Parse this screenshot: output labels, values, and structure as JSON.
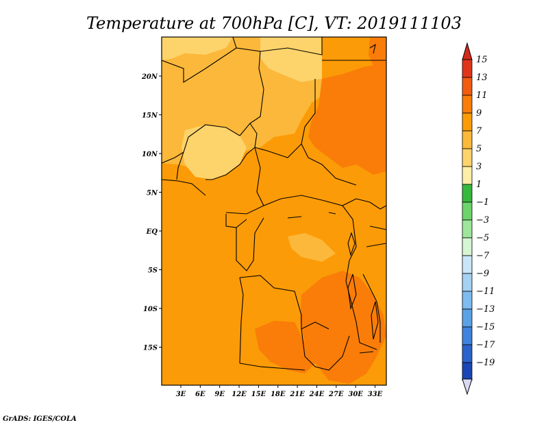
{
  "title": "Temperature at 700hPa [C], VT: 2019111103",
  "credit": "GrADS: IGES/COLA",
  "map": {
    "lat_labels": [
      {
        "lat": 20,
        "label": "20N"
      },
      {
        "lat": 15,
        "label": "15N"
      },
      {
        "lat": 10,
        "label": "10N"
      },
      {
        "lat": 5,
        "label": "5N"
      },
      {
        "lat": 0,
        "label": "EQ"
      },
      {
        "lat": -5,
        "label": "5S"
      },
      {
        "lat": -10,
        "label": "10S"
      },
      {
        "lat": -15,
        "label": "15S"
      }
    ],
    "lon_labels": [
      {
        "lon": 3,
        "label": "3E"
      },
      {
        "lon": 6,
        "label": "6E"
      },
      {
        "lon": 9,
        "label": "9E"
      },
      {
        "lon": 12,
        "label": "12E"
      },
      {
        "lon": 15,
        "label": "15E"
      },
      {
        "lon": 18,
        "label": "18E"
      },
      {
        "lon": 21,
        "label": "21E"
      },
      {
        "lon": 24,
        "label": "24E"
      },
      {
        "lon": 27,
        "label": "27E"
      },
      {
        "lon": 30,
        "label": "30E"
      },
      {
        "lon": 33,
        "label": "33E"
      }
    ]
  },
  "colorbar": {
    "levels": [
      {
        "label": "15",
        "color": "#e0351a"
      },
      {
        "label": "13",
        "color": "#f25c0f"
      },
      {
        "label": "11",
        "color": "#f97d08"
      },
      {
        "label": "9",
        "color": "#fb9b07"
      },
      {
        "label": "7",
        "color": "#fcb83a"
      },
      {
        "label": "5",
        "color": "#fdd36b"
      },
      {
        "label": "3",
        "color": "#fdeea8"
      },
      {
        "label": "1",
        "color": "#36b83d"
      },
      {
        "label": "−1",
        "color": "#6cd46b"
      },
      {
        "label": "−3",
        "color": "#9ee69b"
      },
      {
        "label": "−5",
        "color": "#d6f5d3"
      },
      {
        "label": "−7",
        "color": "#c9e6f6"
      },
      {
        "label": "−9",
        "color": "#a5d1f3"
      },
      {
        "label": "−11",
        "color": "#7ebbee"
      },
      {
        "label": "−13",
        "color": "#5aa2e6"
      },
      {
        "label": "−15",
        "color": "#3e84de"
      },
      {
        "label": "−17",
        "color": "#2a63cc"
      },
      {
        "label": "−19",
        "color": "#1a45b4"
      }
    ],
    "bottom_block_color": "#0f2f9a",
    "over_color": "#d12a1a",
    "under_color": "#d9d9f5"
  }
}
